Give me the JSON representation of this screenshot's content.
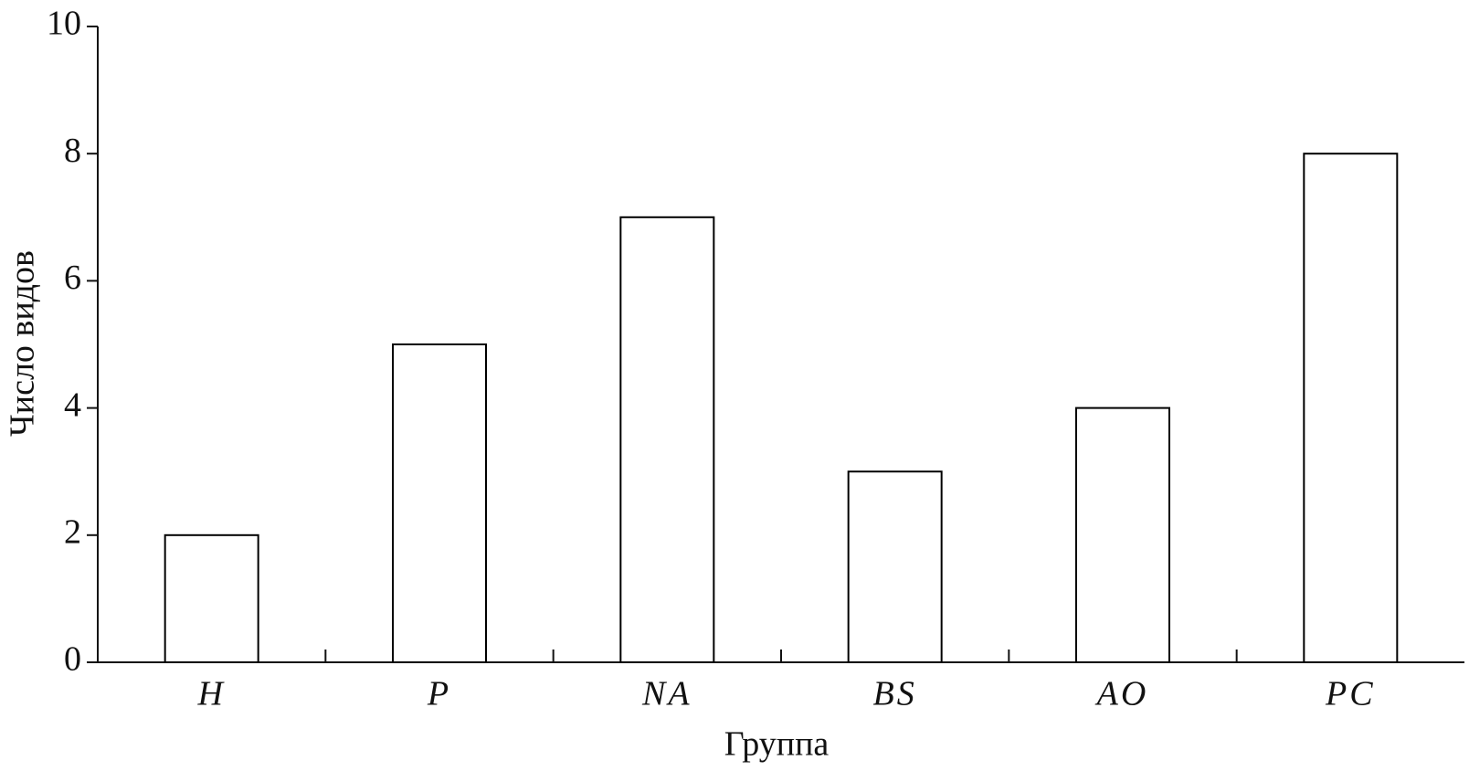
{
  "chart_data": {
    "type": "bar",
    "x_label": "Группа",
    "y_label": "Число видов",
    "categories": [
      "H",
      "P",
      "NA",
      "BS",
      "AO",
      "PC"
    ],
    "values": [
      2,
      5,
      7,
      3,
      4,
      8
    ],
    "color": "#ffffff",
    "edgecolor": "#000000",
    "ylim": [
      0,
      10
    ],
    "yticks": [
      0,
      2,
      4,
      6,
      8,
      10
    ],
    "grid": false
  }
}
